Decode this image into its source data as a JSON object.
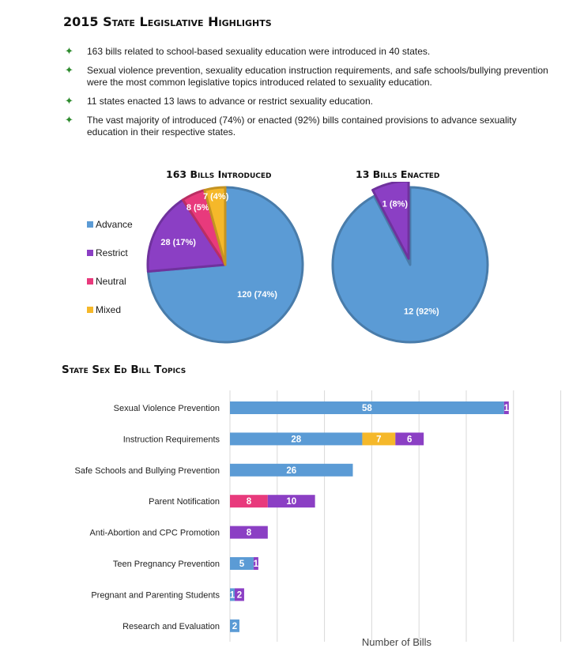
{
  "title": "2015 State Legislative Highlights",
  "bullets": [
    "163 bills related to school-based sexuality education were introduced in 40 states.",
    "Sexual violence prevention, sexuality education instruction requirements, and safe schools/bullying prevention were the most common legislative topics introduced related to sexuality education.",
    "11 states enacted 13 laws to advance or restrict sexuality education.",
    "The vast majority of introduced (74%) or enacted (92%) bills contained provisions to advance sexuality education in their respective states."
  ],
  "colors": {
    "advance": "#5b9bd5",
    "restrict": "#8b3fc4",
    "neutral": "#e83a7c",
    "mixed": "#f5b82a",
    "bullet": "#2e8b2e"
  },
  "chart_data": [
    {
      "type": "pie",
      "title": "163 Bills Introduced",
      "legend": [
        "Advance",
        "Restrict",
        "Neutral",
        "Mixed"
      ],
      "legend_position": "left",
      "slices": [
        {
          "name": "Advance",
          "value": 120,
          "label": "120 (74%)"
        },
        {
          "name": "Restrict",
          "value": 28,
          "label": "28 (17%)"
        },
        {
          "name": "Neutral",
          "value": 8,
          "label": "8 (5%)"
        },
        {
          "name": "Mixed",
          "value": 7,
          "label": "7 (4%)"
        }
      ]
    },
    {
      "type": "pie",
      "title": "13 Bills Enacted",
      "slices": [
        {
          "name": "Advance",
          "value": 12,
          "label": "12 (92%)"
        },
        {
          "name": "Restrict",
          "value": 1,
          "label": "1 (8%)"
        }
      ]
    },
    {
      "type": "bar",
      "orientation": "horizontal",
      "stacked": true,
      "title": "State Sex Ed Bill Topics",
      "xlabel": "Number of Bills",
      "xlim": [
        0,
        70
      ],
      "grid": true,
      "categories": [
        "Sexual Violence Prevention",
        "Instruction Requirements",
        "Safe Schools and Bullying Prevention",
        "Parent Notification",
        "Anti-Abortion and CPC Promotion",
        "Teen Pregnancy Prevention",
        "Pregnant and Parenting Students",
        "Research and Evaluation"
      ],
      "series": [
        {
          "key": "advance",
          "values": [
            58,
            28,
            26,
            0,
            0,
            5,
            1,
            2
          ]
        },
        {
          "key": "neutral",
          "values": [
            0,
            0,
            0,
            8,
            0,
            0,
            0,
            0
          ]
        },
        {
          "key": "mixed",
          "values": [
            0,
            7,
            0,
            0,
            0,
            0,
            0,
            0
          ]
        },
        {
          "key": "restrict",
          "values": [
            1,
            6,
            0,
            10,
            8,
            1,
            2,
            0
          ]
        }
      ]
    }
  ]
}
